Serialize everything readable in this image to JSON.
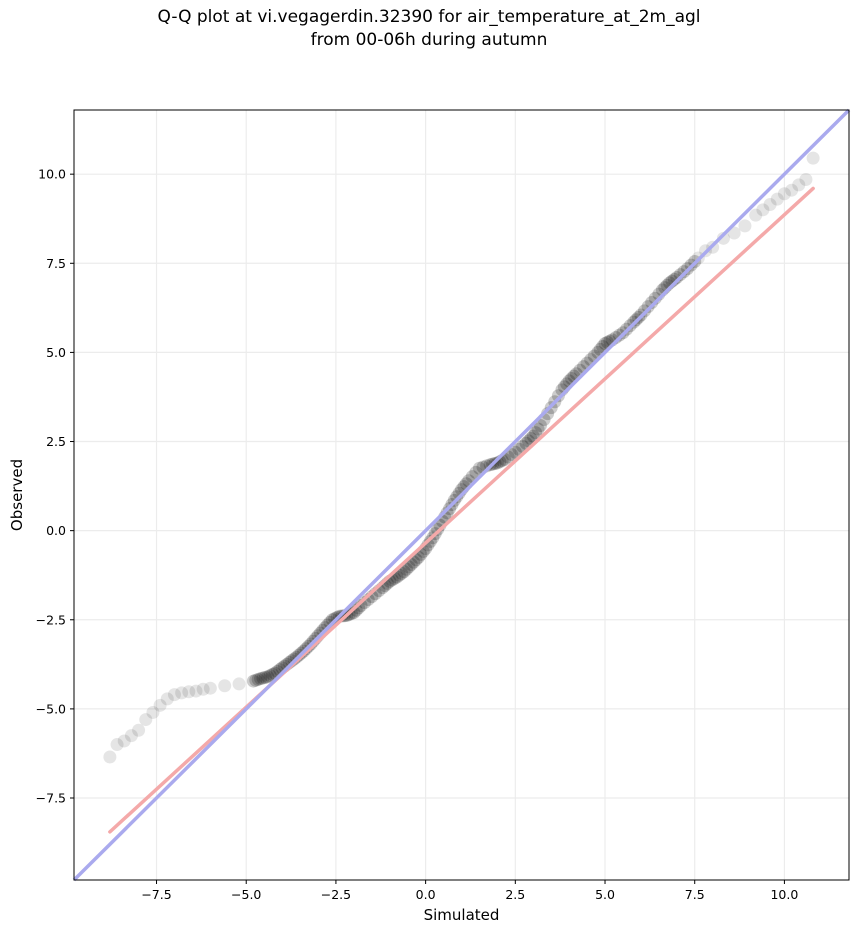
{
  "chart_data": {
    "type": "scatter",
    "title_line1": "Q-Q plot at vi.vegagerdin.32390 for air_temperature_at_2m_agl",
    "title_line2": "from 00-06h during autumn",
    "xlabel": "Simulated",
    "ylabel": "Observed",
    "xlim": [
      -9.8,
      11.8
    ],
    "ylim": [
      -9.8,
      11.8
    ],
    "grid": true,
    "xticks": [
      -7.5,
      -5.0,
      -2.5,
      0.0,
      2.5,
      5.0,
      7.5,
      10.0
    ],
    "yticks": [
      -7.5,
      -5.0,
      -2.5,
      0.0,
      2.5,
      5.0,
      7.5,
      10.0
    ],
    "xtick_labels": [
      "−7.5",
      "−5.0",
      "−2.5",
      "0.0",
      "2.5",
      "5.0",
      "7.5",
      "10.0"
    ],
    "ytick_labels": [
      "−7.5",
      "−5.0",
      "−2.5",
      "0.0",
      "2.5",
      "5.0",
      "7.5",
      "10.0"
    ],
    "reference_line": {
      "x": [
        -9.8,
        11.8
      ],
      "y": [
        -9.8,
        11.8
      ],
      "color": "#aaaaee"
    },
    "fit_line": {
      "x": [
        -8.8,
        10.8
      ],
      "y": [
        -8.45,
        9.6
      ],
      "color": "#f4a9a9"
    },
    "points_color": "#000000",
    "quantile_curve_x": [
      -8.8,
      -8.6,
      -8.4,
      -8.2,
      -8.0,
      -7.8,
      -7.6,
      -7.4,
      -7.2,
      -7.0,
      -6.8,
      -6.6,
      -6.4,
      -6.2,
      -6.0,
      -5.6,
      -5.2,
      -4.8,
      -4.6,
      -4.4,
      -4.2,
      -4.0,
      -3.8,
      -3.6,
      -3.4,
      -3.2,
      -3.0,
      -2.8,
      -2.6,
      -2.4,
      -2.2,
      -2.0,
      -1.8,
      -1.5,
      -1.2,
      -1.0,
      -0.8,
      -0.6,
      -0.4,
      -0.2,
      0.0,
      0.2,
      0.4,
      0.6,
      0.8,
      1.0,
      1.2,
      1.5,
      1.8,
      2.0,
      2.2,
      2.5,
      2.8,
      3.0,
      3.2,
      3.5,
      3.8,
      4.0,
      4.2,
      4.5,
      4.8,
      5.0,
      5.2,
      5.5,
      5.8,
      6.0,
      6.3,
      6.6,
      6.8,
      7.0,
      7.3,
      7.6,
      7.8,
      8.0,
      8.3,
      8.6,
      8.9,
      9.2,
      9.4,
      9.6,
      9.8,
      10.0,
      10.2,
      10.4,
      10.6,
      10.8
    ],
    "quantile_curve_y": [
      -6.35,
      -6.0,
      -5.9,
      -5.75,
      -5.6,
      -5.3,
      -5.1,
      -4.9,
      -4.72,
      -4.6,
      -4.55,
      -4.52,
      -4.5,
      -4.45,
      -4.42,
      -4.35,
      -4.3,
      -4.22,
      -4.15,
      -4.1,
      -4.0,
      -3.85,
      -3.7,
      -3.55,
      -3.38,
      -3.18,
      -2.95,
      -2.72,
      -2.5,
      -2.4,
      -2.38,
      -2.3,
      -2.1,
      -1.85,
      -1.6,
      -1.42,
      -1.3,
      -1.15,
      -0.95,
      -0.75,
      -0.5,
      -0.2,
      0.15,
      0.5,
      0.85,
      1.15,
      1.4,
      1.75,
      1.85,
      1.9,
      2.0,
      2.2,
      2.45,
      2.65,
      2.95,
      3.45,
      3.95,
      4.2,
      4.4,
      4.7,
      5.0,
      5.25,
      5.35,
      5.55,
      5.85,
      6.05,
      6.4,
      6.75,
      6.95,
      7.1,
      7.35,
      7.65,
      7.85,
      7.95,
      8.2,
      8.35,
      8.55,
      8.85,
      9.0,
      9.15,
      9.3,
      9.45,
      9.55,
      9.7,
      9.85,
      10.45
    ]
  }
}
